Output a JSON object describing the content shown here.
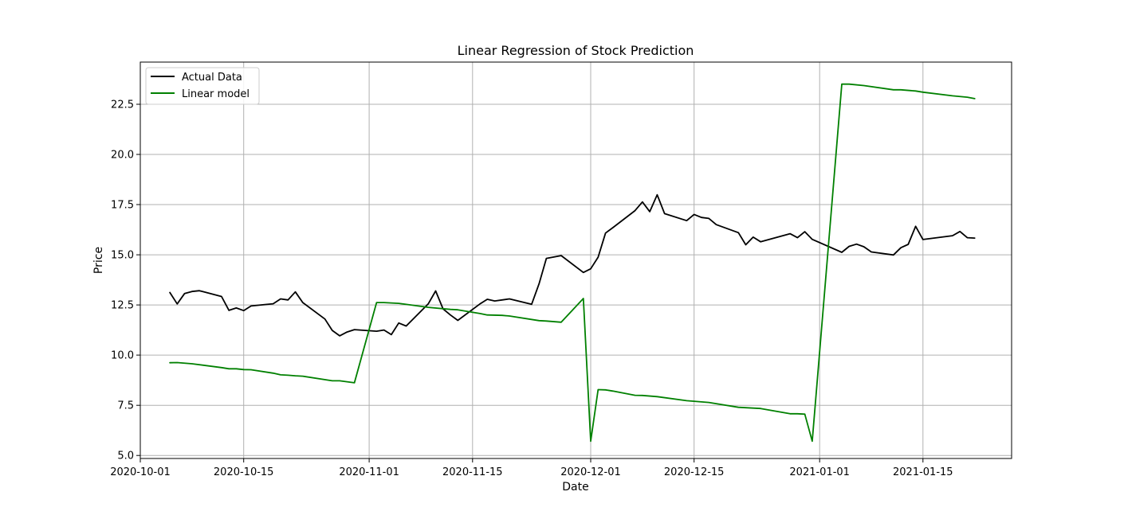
{
  "chart_data": {
    "type": "line",
    "title": "Linear Regression of Stock Prediction",
    "xlabel": "Date",
    "ylabel": "Price",
    "xlim": [
      "2020-10-01",
      "2021-01-27"
    ],
    "ylim": [
      4.85,
      24.6
    ],
    "x_ticks": [
      "2020-10-01",
      "2020-10-15",
      "2020-11-01",
      "2020-11-15",
      "2020-12-01",
      "2020-12-15",
      "2021-01-01",
      "2021-01-15"
    ],
    "y_ticks": [
      5.0,
      7.5,
      10.0,
      12.5,
      15.0,
      17.5,
      20.0,
      22.5
    ],
    "grid": true,
    "legend_position": "top-left",
    "colors": {
      "actual": "#000000",
      "linear": "#008000",
      "grid": "#b0b0b0"
    },
    "series": [
      {
        "name": "Actual Data",
        "color": "#000000",
        "points": [
          [
            "2020-10-05",
            13.12
          ],
          [
            "2020-10-06",
            12.55
          ],
          [
            "2020-10-07",
            13.07
          ],
          [
            "2020-10-08",
            13.17
          ],
          [
            "2020-10-09",
            13.21
          ],
          [
            "2020-10-12",
            12.92
          ],
          [
            "2020-10-13",
            12.23
          ],
          [
            "2020-10-14",
            12.35
          ],
          [
            "2020-10-15",
            12.22
          ],
          [
            "2020-10-16",
            12.45
          ],
          [
            "2020-10-19",
            12.56
          ],
          [
            "2020-10-20",
            12.8
          ],
          [
            "2020-10-21",
            12.75
          ],
          [
            "2020-10-22",
            13.15
          ],
          [
            "2020-10-23",
            12.62
          ],
          [
            "2020-10-26",
            11.8
          ],
          [
            "2020-10-27",
            11.23
          ],
          [
            "2020-10-28",
            10.96
          ],
          [
            "2020-10-29",
            11.15
          ],
          [
            "2020-10-30",
            11.27
          ],
          [
            "2020-11-02",
            11.19
          ],
          [
            "2020-11-03",
            11.25
          ],
          [
            "2020-11-04",
            11.02
          ],
          [
            "2020-11-05",
            11.6
          ],
          [
            "2020-11-06",
            11.45
          ],
          [
            "2020-11-09",
            12.55
          ],
          [
            "2020-11-10",
            13.2
          ],
          [
            "2020-11-11",
            12.3
          ],
          [
            "2020-11-12",
            12.0
          ],
          [
            "2020-11-13",
            11.73
          ],
          [
            "2020-11-16",
            12.55
          ],
          [
            "2020-11-17",
            12.78
          ],
          [
            "2020-11-18",
            12.7
          ],
          [
            "2020-11-19",
            12.75
          ],
          [
            "2020-11-20",
            12.8
          ],
          [
            "2020-11-23",
            12.53
          ],
          [
            "2020-11-24",
            13.55
          ],
          [
            "2020-11-25",
            14.82
          ],
          [
            "2020-11-27",
            14.96
          ],
          [
            "2020-11-30",
            14.12
          ],
          [
            "2020-12-01",
            14.3
          ],
          [
            "2020-12-02",
            14.88
          ],
          [
            "2020-12-03",
            16.08
          ],
          [
            "2020-12-04",
            16.35
          ],
          [
            "2020-12-07",
            17.2
          ],
          [
            "2020-12-08",
            17.63
          ],
          [
            "2020-12-09",
            17.15
          ],
          [
            "2020-12-10",
            17.99
          ],
          [
            "2020-12-11",
            17.05
          ],
          [
            "2020-12-14",
            16.7
          ],
          [
            "2020-12-15",
            17.01
          ],
          [
            "2020-12-16",
            16.86
          ],
          [
            "2020-12-17",
            16.81
          ],
          [
            "2020-12-18",
            16.5
          ],
          [
            "2020-12-21",
            16.1
          ],
          [
            "2020-12-22",
            15.5
          ],
          [
            "2020-12-23",
            15.88
          ],
          [
            "2020-12-24",
            15.65
          ],
          [
            "2020-12-28",
            16.05
          ],
          [
            "2020-12-29",
            15.85
          ],
          [
            "2020-12-30",
            16.15
          ],
          [
            "2020-12-31",
            15.77
          ],
          [
            "2021-01-04",
            15.12
          ],
          [
            "2021-01-05",
            15.42
          ],
          [
            "2021-01-06",
            15.53
          ],
          [
            "2021-01-07",
            15.4
          ],
          [
            "2021-01-08",
            15.14
          ],
          [
            "2021-01-11",
            14.99
          ],
          [
            "2021-01-12",
            15.35
          ],
          [
            "2021-01-13",
            15.52
          ],
          [
            "2021-01-14",
            16.42
          ],
          [
            "2021-01-15",
            15.76
          ],
          [
            "2021-01-19",
            15.95
          ],
          [
            "2021-01-20",
            16.16
          ],
          [
            "2021-01-21",
            15.85
          ],
          [
            "2021-01-22",
            15.83
          ]
        ]
      },
      {
        "name": "Linear model",
        "color": "#008000",
        "points": [
          [
            "2020-10-05",
            9.62
          ],
          [
            "2020-10-06",
            9.63
          ],
          [
            "2020-10-08",
            9.57
          ],
          [
            "2020-10-12",
            9.38
          ],
          [
            "2020-10-13",
            9.32
          ],
          [
            "2020-10-14",
            9.32
          ],
          [
            "2020-10-15",
            9.28
          ],
          [
            "2020-10-16",
            9.27
          ],
          [
            "2020-10-19",
            9.1
          ],
          [
            "2020-10-20",
            9.02
          ],
          [
            "2020-10-21",
            9.0
          ],
          [
            "2020-10-22",
            8.97
          ],
          [
            "2020-10-23",
            8.95
          ],
          [
            "2020-10-27",
            8.72
          ],
          [
            "2020-10-28",
            8.72
          ],
          [
            "2020-10-30",
            8.62
          ],
          [
            "2020-11-02",
            12.62
          ],
          [
            "2020-11-03",
            12.62
          ],
          [
            "2020-11-05",
            12.58
          ],
          [
            "2020-11-09",
            12.38
          ],
          [
            "2020-11-12",
            12.28
          ],
          [
            "2020-11-13",
            12.26
          ],
          [
            "2020-11-16",
            12.07
          ],
          [
            "2020-11-17",
            12.0
          ],
          [
            "2020-11-19",
            11.98
          ],
          [
            "2020-11-20",
            11.95
          ],
          [
            "2020-11-24",
            11.72
          ],
          [
            "2020-11-25",
            11.7
          ],
          [
            "2020-11-27",
            11.64
          ],
          [
            "2020-11-30",
            12.82
          ],
          [
            "2020-12-01",
            5.71
          ],
          [
            "2020-12-02",
            8.28
          ],
          [
            "2020-12-03",
            8.27
          ],
          [
            "2020-12-04",
            8.21
          ],
          [
            "2020-12-07",
            8.0
          ],
          [
            "2020-12-08",
            7.99
          ],
          [
            "2020-12-10",
            7.93
          ],
          [
            "2020-12-14",
            7.73
          ],
          [
            "2020-12-15",
            7.7
          ],
          [
            "2020-12-17",
            7.64
          ],
          [
            "2020-12-21",
            7.4
          ],
          [
            "2020-12-22",
            7.38
          ],
          [
            "2020-12-24",
            7.34
          ],
          [
            "2020-12-28",
            7.08
          ],
          [
            "2020-12-29",
            7.08
          ],
          [
            "2020-12-30",
            7.06
          ],
          [
            "2020-12-31",
            5.71
          ],
          [
            "2021-01-04",
            23.5
          ],
          [
            "2021-01-05",
            23.5
          ],
          [
            "2021-01-07",
            23.43
          ],
          [
            "2021-01-11",
            23.22
          ],
          [
            "2021-01-12",
            23.22
          ],
          [
            "2021-01-14",
            23.16
          ],
          [
            "2021-01-15",
            23.1
          ],
          [
            "2021-01-19",
            22.92
          ],
          [
            "2021-01-21",
            22.85
          ],
          [
            "2021-01-22",
            22.78
          ]
        ]
      }
    ]
  }
}
